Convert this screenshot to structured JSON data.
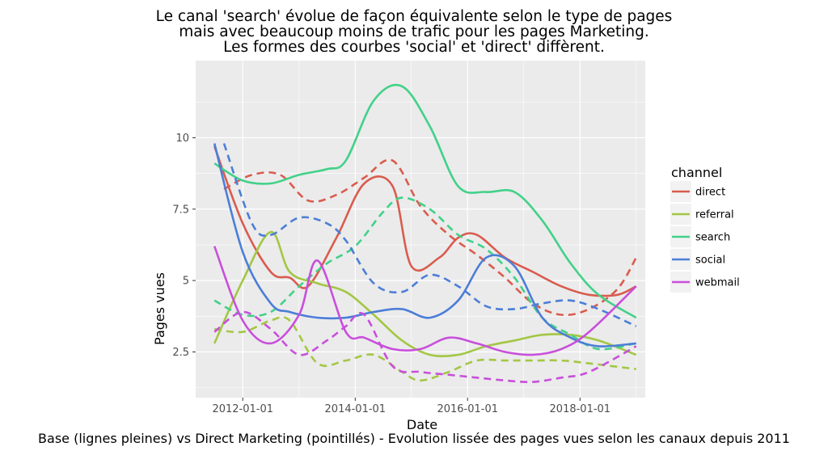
{
  "chart_data": {
    "type": "line",
    "title_lines": [
      "Le canal 'search' évolue de façon équivalente selon le type de pages",
      "mais avec beaucoup moins de trafic pour les pages Marketing.",
      "Les formes des courbes 'social' et 'direct' diffèrent."
    ],
    "caption": "Base (lignes pleines) vs Direct Marketing (pointillés)  - Evolution lissée des pages vues selon les canaux depuis 2011",
    "xlabel": "Date",
    "ylabel": "Pages vues",
    "xlim": [
      "2011-03-01",
      "2019-03-01"
    ],
    "ylim": [
      0.9,
      12.7
    ],
    "x_ticks": [
      "2012-01-01",
      "2014-01-01",
      "2016-01-01",
      "2018-01-01"
    ],
    "y_ticks": [
      2.5,
      5,
      7.5,
      10
    ],
    "y_tick_labels": [
      "2.5",
      "5",
      "7.5",
      "10"
    ],
    "legend": {
      "title": "channel",
      "position": "right"
    },
    "line_styles": {
      "base": "solid",
      "direct_marketing": "dashed"
    },
    "series": [
      {
        "name": "direct",
        "color": "#D95C4E",
        "style": "solid",
        "points": [
          [
            "2011-07-01",
            9.7
          ],
          [
            "2012-01-01",
            7.0
          ],
          [
            "2012-07-01",
            5.3
          ],
          [
            "2012-11-01",
            5.1
          ],
          [
            "2013-03-01",
            4.8
          ],
          [
            "2013-09-01",
            6.5
          ],
          [
            "2014-03-01",
            8.4
          ],
          [
            "2014-09-01",
            8.3
          ],
          [
            "2015-01-01",
            5.5
          ],
          [
            "2015-07-01",
            5.8
          ],
          [
            "2015-11-01",
            6.5
          ],
          [
            "2016-03-01",
            6.6
          ],
          [
            "2016-09-01",
            5.8
          ],
          [
            "2017-03-01",
            5.3
          ],
          [
            "2017-09-01",
            4.8
          ],
          [
            "2018-03-01",
            4.5
          ],
          [
            "2018-09-01",
            4.5
          ],
          [
            "2019-01-01",
            4.8
          ]
        ]
      },
      {
        "name": "direct",
        "color": "#D95C4E",
        "style": "dashed",
        "points": [
          [
            "2011-09-01",
            8.2
          ],
          [
            "2012-03-01",
            8.7
          ],
          [
            "2012-09-01",
            8.7
          ],
          [
            "2013-03-01",
            7.8
          ],
          [
            "2013-09-01",
            8.0
          ],
          [
            "2014-03-01",
            8.6
          ],
          [
            "2014-09-01",
            9.2
          ],
          [
            "2015-03-01",
            7.6
          ],
          [
            "2015-09-01",
            6.6
          ],
          [
            "2016-03-01",
            5.9
          ],
          [
            "2016-09-01",
            5.1
          ],
          [
            "2017-03-01",
            4.2
          ],
          [
            "2017-09-01",
            3.8
          ],
          [
            "2018-03-01",
            4.0
          ],
          [
            "2018-09-01",
            4.7
          ],
          [
            "2019-01-01",
            5.8
          ]
        ]
      },
      {
        "name": "referral",
        "color": "#A3C744",
        "style": "solid",
        "points": [
          [
            "2011-07-01",
            2.8
          ],
          [
            "2012-01-01",
            5.0
          ],
          [
            "2012-07-01",
            6.7
          ],
          [
            "2012-11-01",
            5.3
          ],
          [
            "2013-05-01",
            4.9
          ],
          [
            "2013-11-01",
            4.6
          ],
          [
            "2014-05-01",
            3.8
          ],
          [
            "2014-11-01",
            2.9
          ],
          [
            "2015-05-01",
            2.4
          ],
          [
            "2015-11-01",
            2.4
          ],
          [
            "2016-05-01",
            2.7
          ],
          [
            "2016-11-01",
            2.9
          ],
          [
            "2017-05-01",
            3.1
          ],
          [
            "2017-11-01",
            3.1
          ],
          [
            "2018-05-01",
            2.9
          ],
          [
            "2019-01-01",
            2.4
          ]
        ]
      },
      {
        "name": "referral",
        "color": "#A3C744",
        "style": "dashed",
        "points": [
          [
            "2011-07-01",
            3.3
          ],
          [
            "2012-01-01",
            3.2
          ],
          [
            "2012-07-01",
            3.6
          ],
          [
            "2012-11-01",
            3.6
          ],
          [
            "2013-05-01",
            2.1
          ],
          [
            "2013-11-01",
            2.2
          ],
          [
            "2014-05-01",
            2.4
          ],
          [
            "2014-11-01",
            1.8
          ],
          [
            "2015-03-01",
            1.5
          ],
          [
            "2015-09-01",
            1.8
          ],
          [
            "2016-03-01",
            2.2
          ],
          [
            "2016-09-01",
            2.2
          ],
          [
            "2017-03-01",
            2.2
          ],
          [
            "2017-09-01",
            2.2
          ],
          [
            "2018-03-01",
            2.1
          ],
          [
            "2019-01-01",
            1.9
          ]
        ]
      },
      {
        "name": "search",
        "color": "#42D189",
        "style": "solid",
        "points": [
          [
            "2011-07-01",
            9.1
          ],
          [
            "2012-01-01",
            8.5
          ],
          [
            "2012-07-01",
            8.4
          ],
          [
            "2013-01-01",
            8.7
          ],
          [
            "2013-07-01",
            8.9
          ],
          [
            "2013-11-01",
            9.2
          ],
          [
            "2014-05-01",
            11.3
          ],
          [
            "2014-11-01",
            11.8
          ],
          [
            "2015-05-01",
            10.4
          ],
          [
            "2015-11-01",
            8.3
          ],
          [
            "2016-05-01",
            8.1
          ],
          [
            "2016-11-01",
            8.1
          ],
          [
            "2017-05-01",
            7.1
          ],
          [
            "2017-11-01",
            5.6
          ],
          [
            "2018-05-01",
            4.5
          ],
          [
            "2019-01-01",
            3.7
          ]
        ]
      },
      {
        "name": "search",
        "color": "#42D189",
        "style": "dashed",
        "points": [
          [
            "2011-07-01",
            4.3
          ],
          [
            "2012-01-01",
            3.8
          ],
          [
            "2012-07-01",
            3.9
          ],
          [
            "2013-01-01",
            4.8
          ],
          [
            "2013-07-01",
            5.6
          ],
          [
            "2014-01-01",
            6.2
          ],
          [
            "2014-07-01",
            7.4
          ],
          [
            "2014-11-01",
            7.9
          ],
          [
            "2015-05-01",
            7.5
          ],
          [
            "2015-11-01",
            6.6
          ],
          [
            "2016-05-01",
            6.1
          ],
          [
            "2016-11-01",
            5.1
          ],
          [
            "2017-05-01",
            3.7
          ],
          [
            "2017-11-01",
            3.1
          ],
          [
            "2018-05-01",
            2.6
          ],
          [
            "2019-01-01",
            2.8
          ]
        ]
      },
      {
        "name": "social",
        "color": "#4C7ED7",
        "style": "solid",
        "points": [
          [
            "2011-07-01",
            9.8
          ],
          [
            "2012-01-01",
            6.0
          ],
          [
            "2012-07-01",
            4.2
          ],
          [
            "2012-11-01",
            3.9
          ],
          [
            "2013-05-01",
            3.7
          ],
          [
            "2013-11-01",
            3.7
          ],
          [
            "2014-05-01",
            3.9
          ],
          [
            "2014-11-01",
            4.0
          ],
          [
            "2015-05-01",
            3.7
          ],
          [
            "2015-11-01",
            4.3
          ],
          [
            "2016-05-01",
            5.8
          ],
          [
            "2016-11-01",
            5.5
          ],
          [
            "2017-05-01",
            3.7
          ],
          [
            "2017-11-01",
            3.0
          ],
          [
            "2018-05-01",
            2.7
          ],
          [
            "2019-01-01",
            2.8
          ]
        ]
      },
      {
        "name": "social",
        "color": "#4C7ED7",
        "style": "dashed",
        "points": [
          [
            "2011-09-01",
            9.8
          ],
          [
            "2012-03-01",
            7.0
          ],
          [
            "2012-07-01",
            6.6
          ],
          [
            "2013-01-01",
            7.2
          ],
          [
            "2013-07-01",
            7.0
          ],
          [
            "2013-11-01",
            6.4
          ],
          [
            "2014-05-01",
            4.9
          ],
          [
            "2014-11-01",
            4.6
          ],
          [
            "2015-05-01",
            5.2
          ],
          [
            "2015-11-01",
            4.8
          ],
          [
            "2016-05-01",
            4.1
          ],
          [
            "2016-11-01",
            4.0
          ],
          [
            "2017-05-01",
            4.2
          ],
          [
            "2017-11-01",
            4.3
          ],
          [
            "2018-05-01",
            4.0
          ],
          [
            "2019-01-01",
            3.4
          ]
        ]
      },
      {
        "name": "webmail",
        "color": "#C84FDB",
        "style": "solid",
        "points": [
          [
            "2011-07-01",
            6.2
          ],
          [
            "2012-01-01",
            3.6
          ],
          [
            "2012-07-01",
            2.8
          ],
          [
            "2013-01-01",
            3.8
          ],
          [
            "2013-05-01",
            5.7
          ],
          [
            "2013-11-01",
            3.2
          ],
          [
            "2014-03-01",
            3.0
          ],
          [
            "2014-09-01",
            2.6
          ],
          [
            "2015-03-01",
            2.6
          ],
          [
            "2015-09-01",
            3.0
          ],
          [
            "2016-03-01",
            2.8
          ],
          [
            "2016-09-01",
            2.5
          ],
          [
            "2017-03-01",
            2.4
          ],
          [
            "2017-09-01",
            2.6
          ],
          [
            "2018-03-01",
            3.2
          ],
          [
            "2019-01-01",
            4.8
          ]
        ]
      },
      {
        "name": "webmail",
        "color": "#C84FDB",
        "style": "dashed",
        "points": [
          [
            "2011-07-01",
            3.2
          ],
          [
            "2012-01-01",
            3.9
          ],
          [
            "2012-07-01",
            3.3
          ],
          [
            "2013-01-01",
            2.4
          ],
          [
            "2013-07-01",
            2.9
          ],
          [
            "2013-11-01",
            3.4
          ],
          [
            "2014-03-01",
            3.8
          ],
          [
            "2014-09-01",
            2.0
          ],
          [
            "2015-03-01",
            1.8
          ],
          [
            "2015-09-01",
            1.7
          ],
          [
            "2016-03-01",
            1.6
          ],
          [
            "2016-09-01",
            1.5
          ],
          [
            "2017-03-01",
            1.45
          ],
          [
            "2017-09-01",
            1.6
          ],
          [
            "2018-03-01",
            1.8
          ],
          [
            "2019-01-01",
            2.7
          ]
        ]
      }
    ],
    "legend_entries": [
      {
        "name": "direct",
        "color": "#D95C4E"
      },
      {
        "name": "referral",
        "color": "#A3C744"
      },
      {
        "name": "search",
        "color": "#42D189"
      },
      {
        "name": "social",
        "color": "#4C7ED7"
      },
      {
        "name": "webmail",
        "color": "#C84FDB"
      }
    ],
    "panel_background": "#EBEBEB",
    "grid": true
  }
}
